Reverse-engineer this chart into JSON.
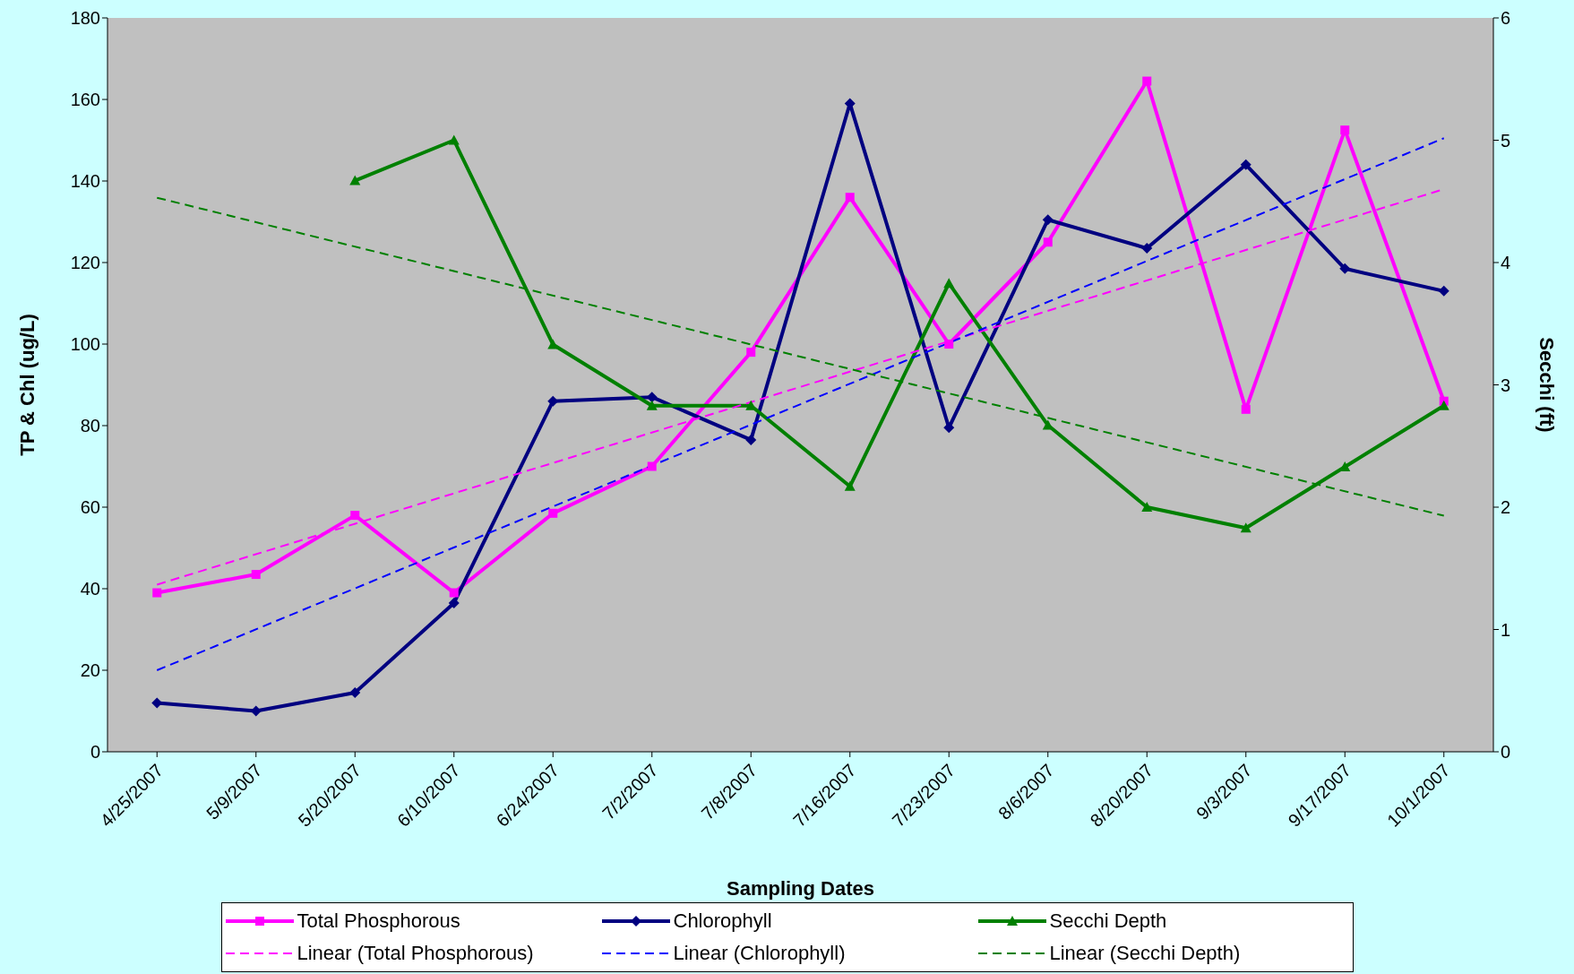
{
  "chart_data": {
    "type": "line",
    "xlabel": "Sampling Dates",
    "ylabel": "TP & Chl (ug/L)",
    "y2label": "Secchi (ft)",
    "categories": [
      "4/25/2007",
      "5/9/2007",
      "5/20/2007",
      "6/10/2007",
      "6/24/2007",
      "7/2/2007",
      "7/8/2007",
      "7/16/2007",
      "7/23/2007",
      "8/6/2007",
      "8/20/2007",
      "9/3/2007",
      "9/17/2007",
      "10/1/2007"
    ],
    "ylim": [
      0,
      180
    ],
    "yticks": [
      0,
      20,
      40,
      60,
      80,
      100,
      120,
      140,
      160,
      180
    ],
    "y2lim": [
      0,
      6
    ],
    "y2ticks": [
      0,
      1,
      2,
      3,
      4,
      5,
      6
    ],
    "grid": false,
    "legend": "bottom",
    "series": [
      {
        "name": "Total Phosphorous",
        "color": "#ff00ff",
        "marker": "square",
        "line_style": "solid",
        "values": [
          39,
          43.5,
          58,
          39,
          58.5,
          70,
          98,
          136,
          100,
          125,
          164.5,
          84,
          152.5,
          86
        ]
      },
      {
        "name": "Chlorophyll",
        "color": "#000080",
        "marker": "diamond",
        "line_style": "solid",
        "values": [
          12,
          10,
          14.5,
          36.5,
          86,
          87,
          76.5,
          159,
          79.5,
          130.5,
          123.5,
          144,
          118.5,
          113
        ]
      },
      {
        "name": "Secchi Depth",
        "color": "#008000",
        "marker": "triangle",
        "line_style": "solid",
        "axis": "y2",
        "values": [
          null,
          null,
          4.67,
          5.0,
          3.33,
          2.83,
          2.83,
          2.17,
          3.83,
          2.67,
          2.0,
          1.83,
          2.33,
          2.83
        ]
      },
      {
        "name": "Linear (Total Phosphorous)",
        "color": "#ff00ff",
        "marker": "none",
        "line_style": "dashed",
        "values": [
          41,
          null,
          null,
          null,
          null,
          null,
          null,
          null,
          null,
          null,
          null,
          null,
          null,
          138
        ]
      },
      {
        "name": "Linear (Chlorophyll)",
        "color": "#0000ff",
        "marker": "none",
        "line_style": "dashed",
        "values": [
          20,
          null,
          null,
          null,
          null,
          null,
          null,
          null,
          null,
          null,
          null,
          null,
          null,
          150.5
        ]
      },
      {
        "name": "Linear (Secchi Depth)",
        "color": "#008000",
        "marker": "none",
        "line_style": "dashed",
        "axis": "y2",
        "values": [
          4.53,
          null,
          null,
          null,
          null,
          null,
          null,
          null,
          null,
          null,
          null,
          null,
          null,
          1.93
        ]
      }
    ]
  }
}
